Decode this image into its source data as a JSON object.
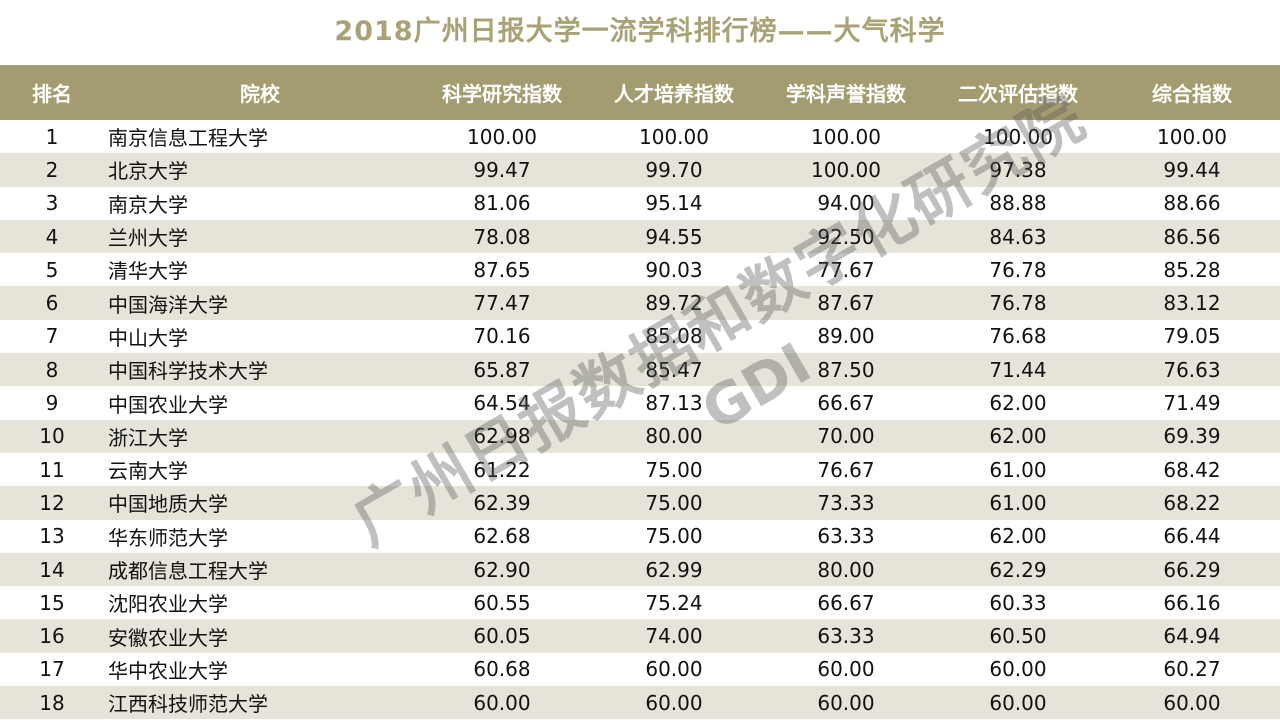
{
  "title": "2018广州日报大学一流学科排行榜——大气科学",
  "columns": [
    "排名",
    "院校",
    "科学研究指数",
    "人才培养指数",
    "学科声誉指数",
    "二次评估指数",
    "综合指数"
  ],
  "rows": [
    [
      "1",
      "南京信息工程大学",
      "100.00",
      "100.00",
      "100.00",
      "100.00",
      "100.00"
    ],
    [
      "2",
      "北京大学",
      "99.47",
      "99.70",
      "100.00",
      "97.38",
      "99.44"
    ],
    [
      "3",
      "南京大学",
      "81.06",
      "95.14",
      "94.00",
      "88.88",
      "88.66"
    ],
    [
      "4",
      "兰州大学",
      "78.08",
      "94.55",
      "92.50",
      "84.63",
      "86.56"
    ],
    [
      "5",
      "清华大学",
      "87.65",
      "90.03",
      "77.67",
      "76.78",
      "85.28"
    ],
    [
      "6",
      "中国海洋大学",
      "77.47",
      "89.72",
      "87.67",
      "76.78",
      "83.12"
    ],
    [
      "7",
      "中山大学",
      "70.16",
      "85.08",
      "89.00",
      "76.68",
      "79.05"
    ],
    [
      "8",
      "中国科学技术大学",
      "65.87",
      "85.47",
      "87.50",
      "71.44",
      "76.63"
    ],
    [
      "9",
      "中国农业大学",
      "64.54",
      "87.13",
      "66.67",
      "62.00",
      "71.49"
    ],
    [
      "10",
      "浙江大学",
      "62.98",
      "80.00",
      "70.00",
      "62.00",
      "69.39"
    ],
    [
      "11",
      "云南大学",
      "61.22",
      "75.00",
      "76.67",
      "61.00",
      "68.42"
    ],
    [
      "12",
      "中国地质大学",
      "62.39",
      "75.00",
      "73.33",
      "61.00",
      "68.22"
    ],
    [
      "13",
      "华东师范大学",
      "62.68",
      "75.00",
      "63.33",
      "62.00",
      "66.44"
    ],
    [
      "14",
      "成都信息工程大学",
      "62.90",
      "62.99",
      "80.00",
      "62.29",
      "66.29"
    ],
    [
      "15",
      "沈阳农业大学",
      "60.55",
      "75.24",
      "66.67",
      "60.33",
      "66.16"
    ],
    [
      "16",
      "安徽农业大学",
      "60.05",
      "74.00",
      "63.33",
      "60.50",
      "64.94"
    ],
    [
      "17",
      "华中农业大学",
      "60.68",
      "60.00",
      "60.00",
      "60.00",
      "60.27"
    ],
    [
      "18",
      "江西科技师范大学",
      "60.00",
      "60.00",
      "60.00",
      "60.00",
      "60.00"
    ]
  ],
  "watermark": {
    "text": "广州日报数据和数字化研究院",
    "sub": "GDI"
  },
  "colors": {
    "header_bg": "#a39c71",
    "title": "#a9a274",
    "alt_row": "#e6e4d8"
  }
}
